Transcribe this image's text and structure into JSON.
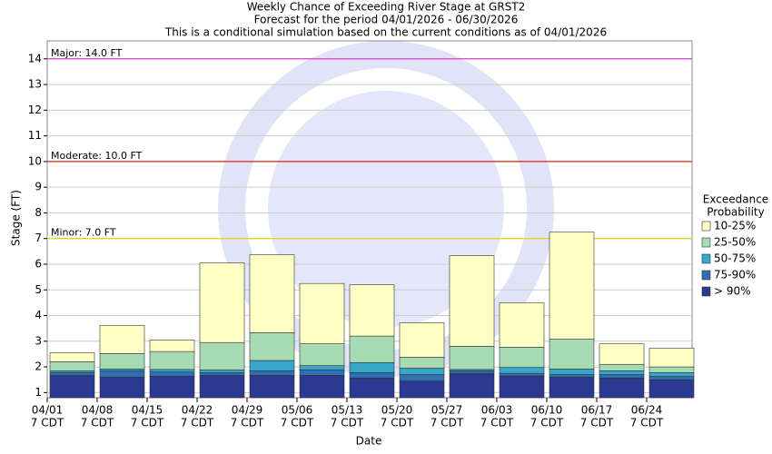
{
  "chart_data": {
    "type": "bar",
    "title": [
      "Weekly Chance of Exceeding River Stage at GRST2",
      "Forecast for the period 04/01/2026 - 06/30/2026",
      "This is a conditional simulation based on the current conditions as of 04/01/2026"
    ],
    "y_label": "Stage (FT)",
    "x_label": "Date",
    "categories": [
      "04/01",
      "04/08",
      "04/15",
      "04/22",
      "04/29",
      "05/06",
      "05/13",
      "05/20",
      "05/27",
      "06/03",
      "06/10",
      "06/17",
      "06/24"
    ],
    "category_sublabels": [
      "7 CDT",
      "7 CDT",
      "7 CDT",
      "7 CDT",
      "7 CDT",
      "7 CDT",
      "7 CDT",
      "7 CDT",
      "7 CDT",
      "7 CDT",
      "7 CDT",
      "7 CDT",
      "7 CDT"
    ],
    "legend_title": [
      "Exceedance",
      "Probability"
    ],
    "series": [
      {
        "name": "> 90%",
        "color": "#2b3990",
        "values": [
          1.67,
          1.6,
          1.64,
          1.67,
          1.67,
          1.67,
          1.57,
          1.45,
          1.75,
          1.65,
          1.6,
          1.57,
          1.5
        ]
      },
      {
        "name": "75-90%",
        "color": "#2f6fb3",
        "values": [
          1.78,
          1.85,
          1.8,
          1.78,
          1.85,
          1.88,
          1.78,
          1.7,
          1.85,
          1.75,
          1.7,
          1.7,
          1.63
        ]
      },
      {
        "name": "50-75%",
        "color": "#37a6c8",
        "values": [
          1.85,
          1.92,
          1.9,
          1.88,
          2.25,
          2.05,
          2.17,
          1.95,
          1.9,
          1.98,
          1.92,
          1.85,
          1.78
        ]
      },
      {
        "name": "25-50%",
        "color": "#a6dbb4",
        "values": [
          2.2,
          2.52,
          2.6,
          2.95,
          3.33,
          2.9,
          3.2,
          2.38,
          2.8,
          2.77,
          3.08,
          2.1,
          2.0
        ]
      },
      {
        "name": "10-25%",
        "color": "#ffffc6",
        "values": [
          2.55,
          3.62,
          3.05,
          6.05,
          6.37,
          5.25,
          5.2,
          3.72,
          6.33,
          4.5,
          7.25,
          2.9,
          2.73
        ]
      }
    ],
    "thresholds": [
      {
        "label": "Major: 14.0 FT",
        "value": 14,
        "color": "#cc33cc"
      },
      {
        "label": "Moderate: 10.0 FT",
        "value": 10,
        "color": "#dd2222"
      },
      {
        "label": "Minor: 7.0 FT",
        "value": 7,
        "color": "#e8d000"
      }
    ],
    "ylim": [
      0.8,
      14.7
    ],
    "yticks": [
      1,
      2,
      3,
      4,
      5,
      6,
      7,
      8,
      9,
      10,
      11,
      12,
      13,
      14
    ],
    "grid": true
  }
}
